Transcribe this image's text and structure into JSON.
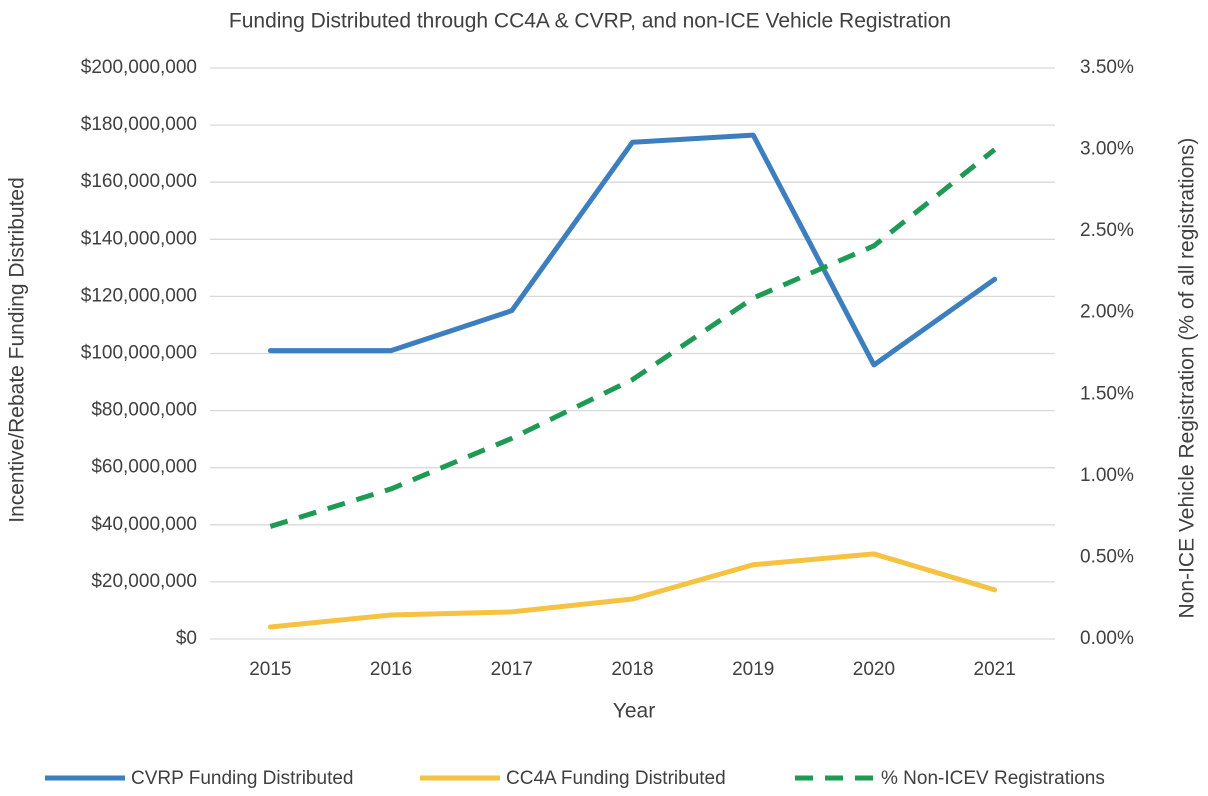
{
  "chart_data": {
    "type": "line",
    "title": "Funding Distributed through CC4A & CVRP, and non-ICE Vehicle Registration",
    "x_label": "Year",
    "y_label": "Incentive/Rebate Funding Distributed",
    "y2_label": "Non-ICE Vehicle Registration (% of all registrations)",
    "categories": [
      "2015",
      "2016",
      "2017",
      "2018",
      "2019",
      "2020",
      "2021"
    ],
    "series": [
      {
        "name": "CVRP Funding Distributed",
        "color": "#3d7ebf",
        "values": [
          101000000,
          101000000,
          115000000,
          174000000,
          176500000,
          96000000,
          126000000
        ]
      },
      {
        "name": "CC4A Funding Distributed",
        "color": "#f5c242",
        "values": [
          4200000,
          8400000,
          9500000,
          14000000,
          26000000,
          29800000,
          17200000
        ]
      },
      {
        "name": "% Non-ICEV Registrations",
        "color": "#1f9a55",
        "dashed": true,
        "axis": "y2",
        "values": [
          0.69,
          0.92,
          1.23,
          1.59,
          2.09,
          2.41,
          3.0
        ]
      }
    ],
    "ylim": [
      0,
      200000000
    ],
    "yticks": [
      {
        "value": 0,
        "label": "$0"
      },
      {
        "value": 20000000,
        "label": "$20,000,000"
      },
      {
        "value": 40000000,
        "label": "$40,000,000"
      },
      {
        "value": 60000000,
        "label": "$60,000,000"
      },
      {
        "value": 80000000,
        "label": "$80,000,000"
      },
      {
        "value": 100000000,
        "label": "$100,000,000"
      },
      {
        "value": 120000000,
        "label": "$120,000,000"
      },
      {
        "value": 140000000,
        "label": "$140,000,000"
      },
      {
        "value": 160000000,
        "label": "$160,000,000"
      },
      {
        "value": 180000000,
        "label": "$180,000,000"
      },
      {
        "value": 200000000,
        "label": "$200,000,000"
      }
    ],
    "y2lim": [
      0,
      3.5
    ],
    "y2ticks": [
      {
        "value": 0,
        "label": "0.00%"
      },
      {
        "value": 0.5,
        "label": "0.50%"
      },
      {
        "value": 1,
        "label": "1.00%"
      },
      {
        "value": 1.5,
        "label": "1.50%"
      },
      {
        "value": 2,
        "label": "2.00%"
      },
      {
        "value": 2.5,
        "label": "2.50%"
      },
      {
        "value": 3,
        "label": "3.00%"
      },
      {
        "value": 3.5,
        "label": "3.50%"
      }
    ],
    "grid": true,
    "legend": "bottom"
  }
}
